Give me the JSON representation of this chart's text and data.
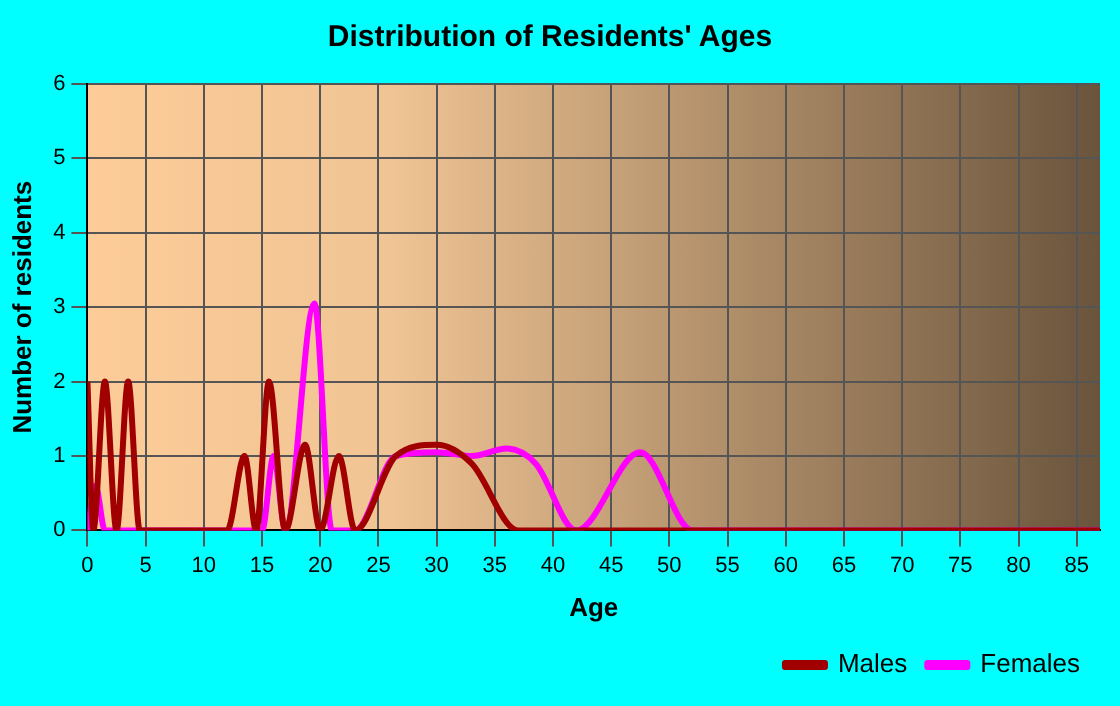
{
  "chart_data": {
    "type": "line",
    "title": "Distribution of Residents' Ages",
    "xlabel": "Age",
    "ylabel": "Number of residents",
    "xlim": [
      0,
      87
    ],
    "xticks": [
      0,
      5,
      10,
      15,
      20,
      25,
      30,
      35,
      40,
      45,
      50,
      55,
      60,
      65,
      70,
      75,
      80,
      85
    ],
    "ylim": [
      0,
      6
    ],
    "yticks": [
      0,
      1,
      2,
      3,
      4,
      5,
      6
    ],
    "grid": true,
    "legend": "bottom right",
    "marker": "none",
    "series": [
      {
        "name": "Males",
        "color": "#a00000",
        "x": [
          0,
          0.5,
          1.5,
          2.5,
          3.5,
          4.5,
          5,
          12,
          13.5,
          14.5,
          15.6,
          17,
          18.7,
          20,
          21.6,
          23,
          26.5,
          30,
          33,
          37,
          45,
          87
        ],
        "values": [
          2,
          0,
          2,
          0,
          2,
          0,
          0,
          0,
          1,
          0,
          2,
          0,
          1.15,
          0,
          1,
          0,
          1,
          1.15,
          0.9,
          0,
          0,
          0
        ]
      },
      {
        "name": "Females",
        "color": "#ff00ff",
        "x": [
          0,
          0.7,
          1.5,
          15,
          16,
          17,
          19.5,
          21,
          23,
          26.5,
          30,
          33,
          36,
          38.5,
          42,
          47.5,
          52,
          87
        ],
        "values": [
          0,
          0.6,
          0,
          0,
          1,
          0,
          3.05,
          0,
          0,
          1,
          1.05,
          1,
          1.1,
          0.9,
          0,
          1.05,
          0,
          0
        ]
      }
    ]
  }
}
